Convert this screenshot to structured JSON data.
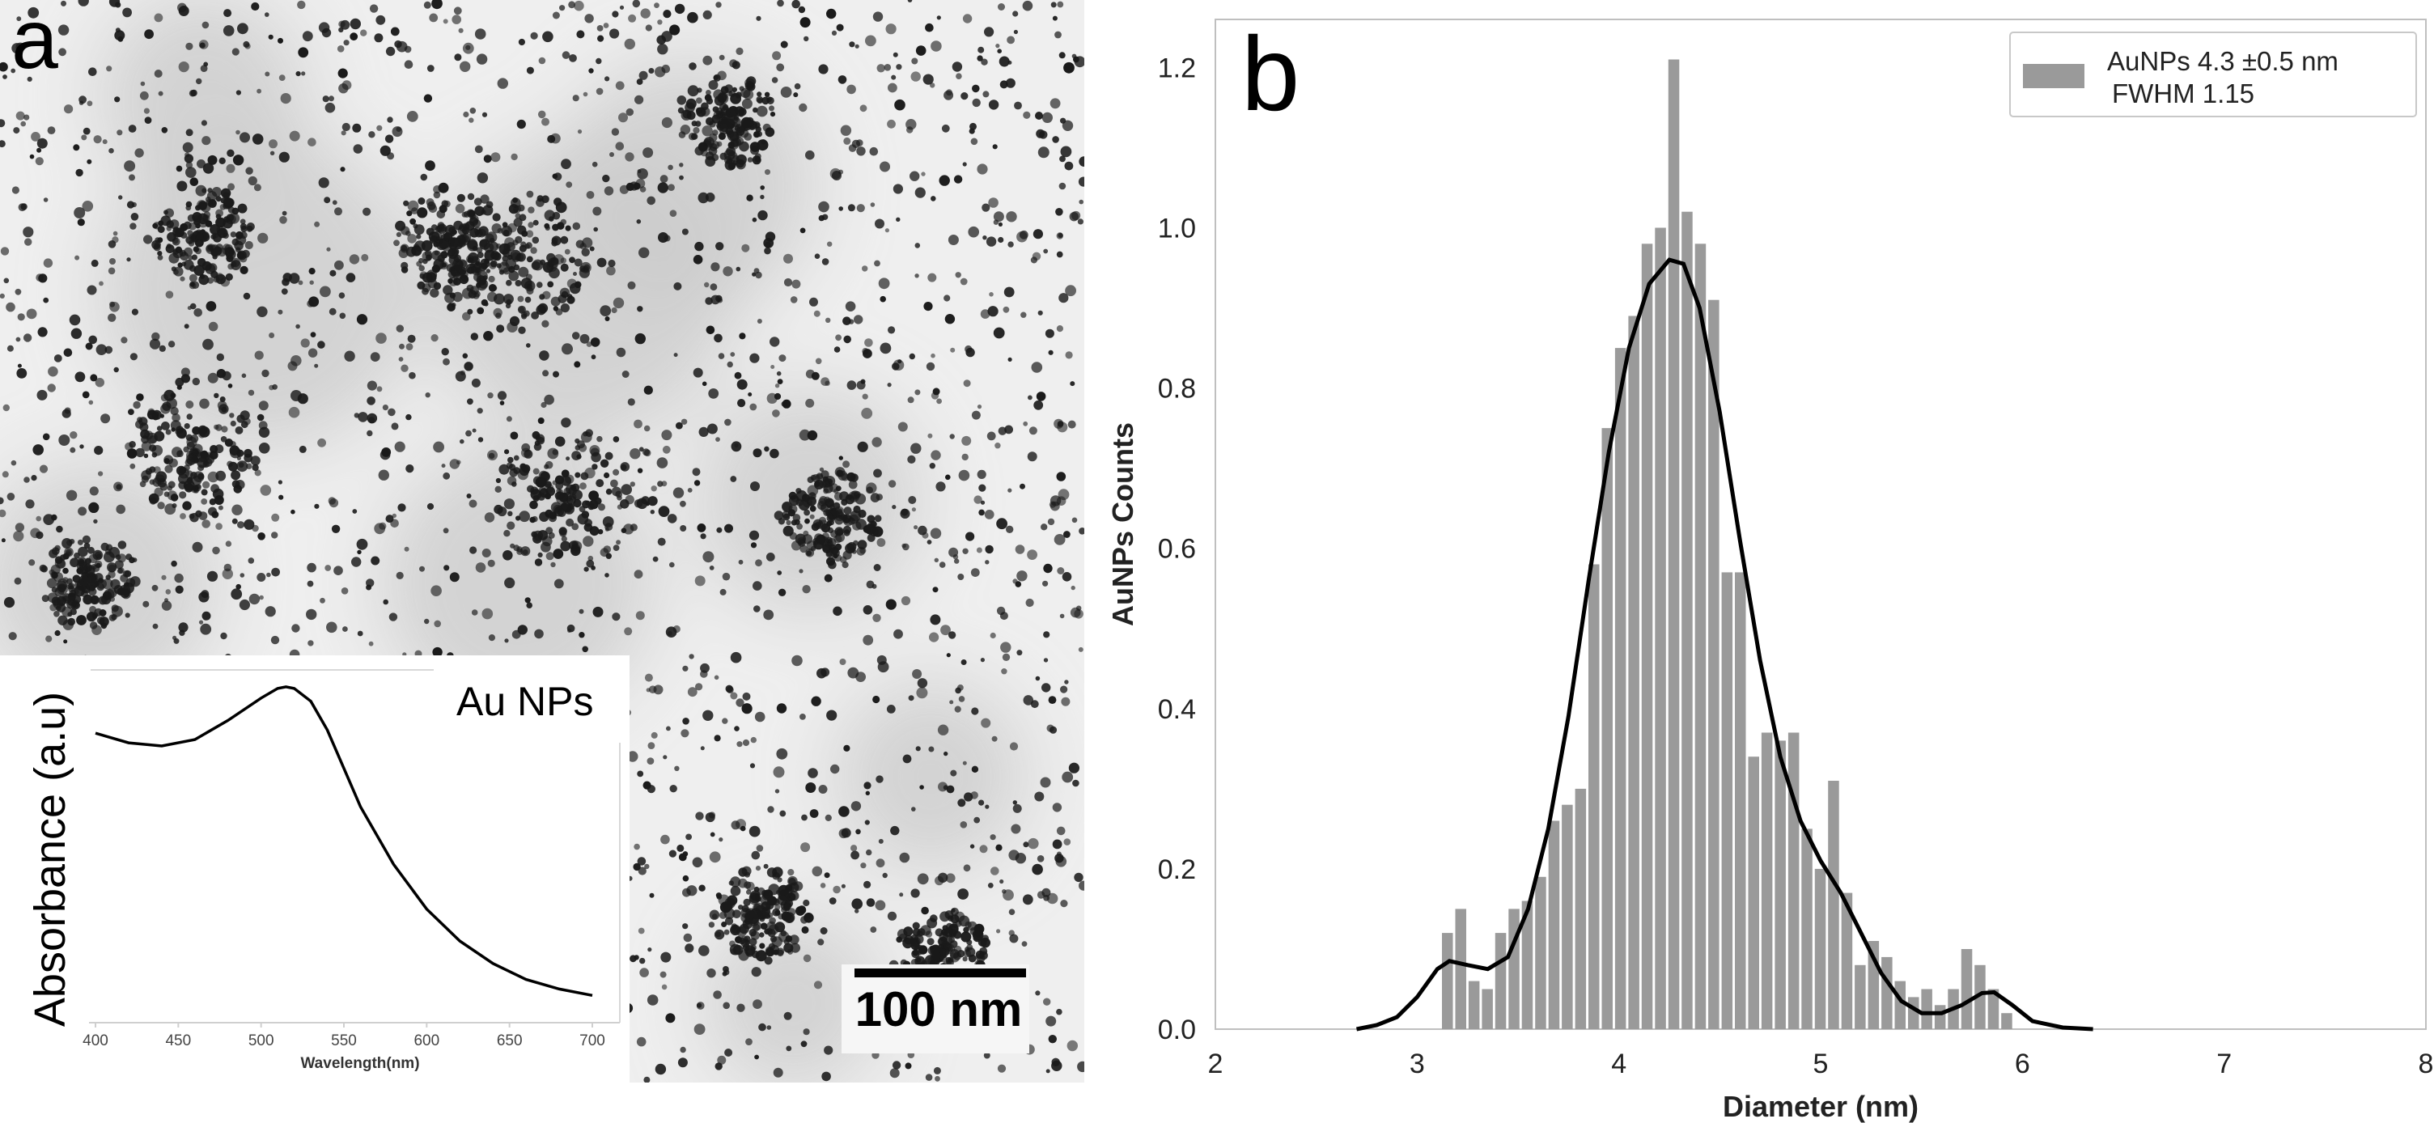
{
  "panels": {
    "a_letter": "a",
    "b_letter": "b"
  },
  "tem": {
    "scalebar_label": "100 nm",
    "colors": {
      "background": "#f0f0f0",
      "particle": "#1a1a1a",
      "halo": "#c9c9c9"
    }
  },
  "inset": {
    "label": "Au NPs",
    "xlabel": "Wavelength(nm)",
    "ylabel": "Absorbance (a.u)",
    "xticks": [
      "400",
      "450",
      "500",
      "550",
      "600",
      "650",
      "700"
    ]
  },
  "histogram": {
    "xlabel": "Diameter (nm)",
    "ylabel": "AuNPs Counts",
    "legend_line1": "AuNPs  4.3 ±0.5 nm",
    "legend_line2": "FWHM 1.15",
    "colors": {
      "bar": "#9a9a9a",
      "curve": "#000000",
      "frame": "#bfbfbf"
    }
  },
  "chart_data": [
    {
      "type": "line",
      "x": [
        400,
        420,
        440,
        460,
        480,
        500,
        510,
        515,
        520,
        530,
        540,
        550,
        560,
        580,
        600,
        620,
        640,
        660,
        680,
        700
      ],
      "series": [
        {
          "values": [
            0.89,
            0.86,
            0.85,
            0.87,
            0.93,
            1.0,
            1.03,
            1.035,
            1.03,
            0.99,
            0.9,
            0.78,
            0.66,
            0.48,
            0.34,
            0.24,
            0.17,
            0.12,
            0.09,
            0.07
          ]
        }
      ],
      "xlabel": "Wavelength(nm)",
      "ylabel": "Absorbance (a.u)",
      "xlim": [
        400,
        700
      ],
      "ylim": [
        0,
        1.05
      ],
      "xticks": [
        400,
        450,
        500,
        550,
        600,
        650,
        700
      ],
      "annotations": [
        "Au NPs"
      ]
    },
    {
      "type": "bar",
      "bin_width": 0.066,
      "x": [
        3.15,
        3.216,
        3.282,
        3.348,
        3.414,
        3.48,
        3.546,
        3.612,
        3.678,
        3.744,
        3.81,
        3.876,
        3.942,
        4.008,
        4.074,
        4.14,
        4.206,
        4.272,
        4.338,
        4.404,
        4.47,
        4.536,
        4.602,
        4.668,
        4.734,
        4.8,
        4.866,
        4.932,
        4.998,
        5.064,
        5.13,
        5.196,
        5.262,
        5.328,
        5.394,
        5.46,
        5.526,
        5.592,
        5.658,
        5.724,
        5.79,
        5.856,
        5.922
      ],
      "values": [
        0.12,
        0.15,
        0.06,
        0.05,
        0.12,
        0.15,
        0.16,
        0.19,
        0.26,
        0.28,
        0.3,
        0.58,
        0.75,
        0.85,
        0.89,
        0.98,
        1.0,
        1.21,
        1.02,
        0.98,
        0.91,
        0.57,
        0.57,
        0.34,
        0.37,
        0.36,
        0.37,
        0.25,
        0.2,
        0.31,
        0.17,
        0.08,
        0.11,
        0.09,
        0.06,
        0.04,
        0.05,
        0.03,
        0.05,
        0.1,
        0.08,
        0.05,
        0.02
      ],
      "curve": {
        "x": [
          2.7,
          2.8,
          2.9,
          3.0,
          3.1,
          3.16,
          3.25,
          3.35,
          3.45,
          3.55,
          3.65,
          3.75,
          3.85,
          3.95,
          4.05,
          4.15,
          4.25,
          4.32,
          4.4,
          4.5,
          4.6,
          4.7,
          4.8,
          4.9,
          5.0,
          5.1,
          5.2,
          5.3,
          5.4,
          5.5,
          5.6,
          5.7,
          5.8,
          5.86,
          5.95,
          6.05,
          6.2,
          6.35
        ],
        "y": [
          0.0,
          0.005,
          0.015,
          0.04,
          0.075,
          0.085,
          0.08,
          0.075,
          0.09,
          0.15,
          0.25,
          0.39,
          0.56,
          0.72,
          0.85,
          0.93,
          0.96,
          0.955,
          0.9,
          0.77,
          0.61,
          0.46,
          0.34,
          0.26,
          0.21,
          0.17,
          0.12,
          0.07,
          0.035,
          0.02,
          0.02,
          0.03,
          0.045,
          0.046,
          0.03,
          0.01,
          0.002,
          0.0
        ]
      },
      "xlabel": "Diameter (nm)",
      "ylabel": "AuNPs Counts",
      "xlim": [
        2,
        8
      ],
      "ylim": [
        0,
        1.26
      ],
      "xticks": [
        2,
        3,
        4,
        5,
        6,
        7,
        8
      ],
      "yticks": [
        0.0,
        0.2,
        0.4,
        0.6,
        0.8,
        1.0,
        1.2
      ],
      "legend": {
        "position": "top-right",
        "entries": [
          "AuNPs  4.3 ±0.5 nm",
          "FWHM 1.15"
        ]
      },
      "grid": false
    }
  ]
}
